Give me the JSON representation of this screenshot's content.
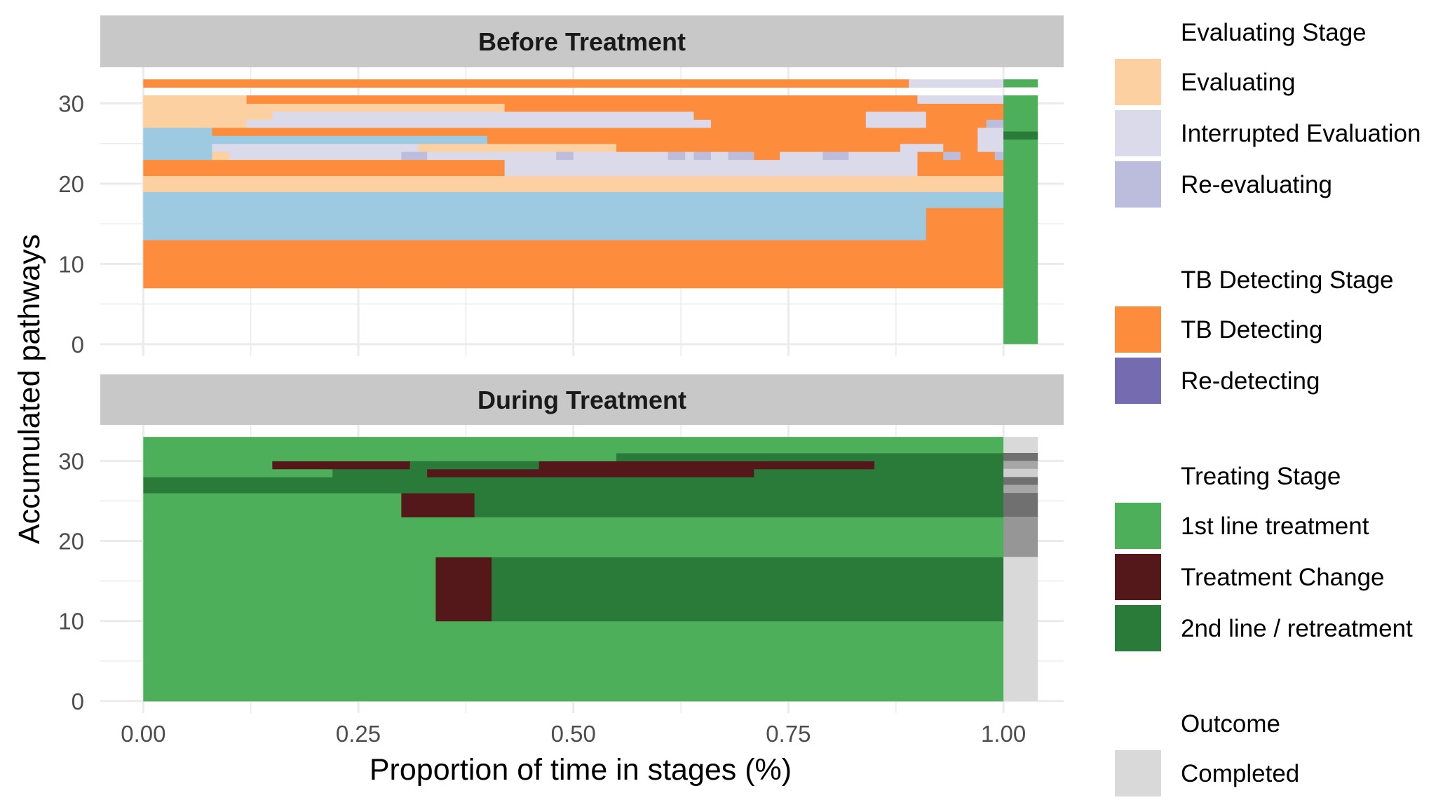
{
  "chart_data": {
    "type": "stacked-timeline",
    "xlabel": "Proportion of time in stages (%)",
    "ylabel": "Accumulated pathways",
    "x_ticks": [
      "0.00",
      "0.25",
      "0.50",
      "0.75",
      "1.00"
    ],
    "y_ticks": [
      "0",
      "10",
      "20",
      "30"
    ],
    "xlim": [
      -0.05,
      1.07
    ],
    "ylim": [
      -1.5,
      34.5
    ],
    "grid": true,
    "legend_position": "right",
    "panels": [
      {
        "title": "Before Treatment",
        "outcome_bars": [
          {
            "y0": 0,
            "y1": 31,
            "color": "#4daf5a"
          },
          {
            "y0": 25.5,
            "y1": 26.5,
            "color": "#2a7b3a"
          },
          {
            "y0": 32,
            "y1": 33,
            "color": "#4daf5a"
          }
        ],
        "bars": [
          {
            "y0": 7,
            "y1": 13,
            "segments": [
              [
                0,
                1.0,
                "TB Detecting"
              ]
            ]
          },
          {
            "y0": 13,
            "y1": 17,
            "segments": [
              [
                0,
                0.91,
                "Blue"
              ],
              [
                0.91,
                1.0,
                "TB Detecting"
              ]
            ]
          },
          {
            "y0": 17,
            "y1": 19,
            "segments": [
              [
                0,
                1.0,
                "Blue"
              ]
            ]
          },
          {
            "y0": 19,
            "y1": 21,
            "segments": [
              [
                0,
                1.0,
                "Evaluating"
              ]
            ]
          },
          {
            "y0": 21,
            "y1": 23,
            "segments": [
              [
                0,
                0.42,
                "TB Detecting"
              ],
              [
                0.42,
                0.9,
                "Interrupted Evaluation"
              ],
              [
                0.9,
                0.98,
                "TB Detecting"
              ],
              [
                0.98,
                1.0,
                "TB Detecting"
              ]
            ]
          },
          {
            "y0": 23,
            "y1": 24,
            "segments": [
              [
                0,
                0.08,
                "Blue"
              ],
              [
                0.08,
                0.1,
                "Evaluating"
              ],
              [
                0.1,
                0.3,
                "Interrupted Evaluation"
              ],
              [
                0.3,
                0.33,
                "Re-evaluating"
              ],
              [
                0.33,
                0.48,
                "Interrupted Evaluation"
              ],
              [
                0.48,
                0.5,
                "Re-evaluating"
              ],
              [
                0.5,
                0.61,
                "Interrupted Evaluation"
              ],
              [
                0.61,
                0.63,
                "Re-evaluating"
              ],
              [
                0.63,
                0.64,
                "Interrupted Evaluation"
              ],
              [
                0.64,
                0.66,
                "Re-evaluating"
              ],
              [
                0.66,
                0.68,
                "Interrupted Evaluation"
              ],
              [
                0.68,
                0.71,
                "Re-evaluating"
              ],
              [
                0.71,
                0.74,
                "TB Detecting"
              ],
              [
                0.74,
                0.79,
                "Interrupted Evaluation"
              ],
              [
                0.79,
                0.82,
                "Re-evaluating"
              ],
              [
                0.82,
                0.9,
                "Interrupted Evaluation"
              ],
              [
                0.9,
                0.93,
                "TB Detecting"
              ],
              [
                0.93,
                0.95,
                "Re-evaluating"
              ],
              [
                0.95,
                0.99,
                "TB Detecting"
              ],
              [
                0.99,
                1.0,
                "Re-evaluating"
              ]
            ]
          },
          {
            "y0": 24,
            "y1": 25,
            "segments": [
              [
                0,
                0.08,
                "Blue"
              ],
              [
                0.08,
                0.32,
                "Interrupted Evaluation"
              ],
              [
                0.32,
                0.55,
                "Evaluating"
              ],
              [
                0.55,
                0.67,
                "TB Detecting"
              ],
              [
                0.67,
                0.88,
                "TB Detecting"
              ],
              [
                0.88,
                0.93,
                "Interrupted Evaluation"
              ],
              [
                0.93,
                0.97,
                "TB Detecting"
              ],
              [
                0.97,
                1.0,
                "Interrupted Evaluation"
              ]
            ]
          },
          {
            "y0": 25,
            "y1": 26,
            "segments": [
              [
                0,
                0.08,
                "Blue"
              ],
              [
                0.08,
                0.4,
                "Blue"
              ],
              [
                0.4,
                0.67,
                "TB Detecting"
              ],
              [
                0.67,
                0.88,
                "TB Detecting"
              ],
              [
                0.88,
                0.97,
                "TB Detecting"
              ],
              [
                0.97,
                1.0,
                "Interrupted Evaluation"
              ]
            ]
          },
          {
            "y0": 26,
            "y1": 27,
            "segments": [
              [
                0,
                0.08,
                "Blue"
              ],
              [
                0.08,
                0.88,
                "TB Detecting"
              ],
              [
                0.88,
                0.97,
                "TB Detecting"
              ],
              [
                0.97,
                1.0,
                "Interrupted Evaluation"
              ]
            ]
          },
          {
            "y0": 27,
            "y1": 28,
            "segments": [
              [
                0,
                0.12,
                "Evaluating"
              ],
              [
                0.12,
                0.66,
                "Interrupted Evaluation"
              ],
              [
                0.66,
                0.84,
                "TB Detecting"
              ],
              [
                0.84,
                0.91,
                "Interrupted Evaluation"
              ],
              [
                0.91,
                0.98,
                "TB Detecting"
              ],
              [
                0.98,
                1.0,
                "Re-evaluating"
              ]
            ]
          },
          {
            "y0": 28,
            "y1": 29,
            "segments": [
              [
                0,
                0.15,
                "Evaluating"
              ],
              [
                0.15,
                0.64,
                "Interrupted Evaluation"
              ],
              [
                0.64,
                0.84,
                "TB Detecting"
              ],
              [
                0.84,
                0.91,
                "Interrupted Evaluation"
              ],
              [
                0.91,
                1.0,
                "TB Detecting"
              ]
            ]
          },
          {
            "y0": 29,
            "y1": 30,
            "segments": [
              [
                0,
                0.42,
                "Evaluating"
              ],
              [
                0.42,
                0.9,
                "TB Detecting"
              ],
              [
                0.9,
                1.0,
                "TB Detecting"
              ]
            ]
          },
          {
            "y0": 30,
            "y1": 31,
            "segments": [
              [
                0,
                0.12,
                "Evaluating"
              ],
              [
                0.12,
                0.9,
                "TB Detecting"
              ],
              [
                0.9,
                1.0,
                "Interrupted Evaluation"
              ]
            ]
          },
          {
            "y0": 32,
            "y1": 33,
            "segments": [
              [
                0,
                0.89,
                "TB Detecting"
              ],
              [
                0.89,
                1.0,
                "Interrupted Evaluation"
              ]
            ]
          }
        ]
      },
      {
        "title": "During Treatment",
        "outcome_bars": [
          {
            "y0": 0,
            "y1": 18,
            "color": "#d9d9d9"
          },
          {
            "y0": 18,
            "y1": 23,
            "color": "#969696"
          },
          {
            "y0": 23,
            "y1": 26,
            "color": "#707070"
          },
          {
            "y0": 26,
            "y1": 27,
            "color": "#a6a6a6"
          },
          {
            "y0": 27,
            "y1": 28,
            "color": "#707070"
          },
          {
            "y0": 28,
            "y1": 29,
            "color": "#cfcfcf"
          },
          {
            "y0": 29,
            "y1": 30,
            "color": "#a6a6a6"
          },
          {
            "y0": 30,
            "y1": 31,
            "color": "#707070"
          },
          {
            "y0": 31,
            "y1": 33,
            "color": "#d9d9d9"
          }
        ],
        "bars": [
          {
            "y0": 0,
            "y1": 10,
            "segments": [
              [
                0,
                1.0,
                "1st line treatment"
              ]
            ]
          },
          {
            "y0": 10,
            "y1": 18,
            "segments": [
              [
                0,
                0.34,
                "1st line treatment"
              ],
              [
                0.34,
                0.405,
                "Treatment Change"
              ],
              [
                0.405,
                1.0,
                "2nd line / retreatment"
              ]
            ]
          },
          {
            "y0": 18,
            "y1": 23,
            "segments": [
              [
                0,
                1.0,
                "1st line treatment"
              ]
            ]
          },
          {
            "y0": 23,
            "y1": 26,
            "segments": [
              [
                0,
                0.3,
                "1st line treatment"
              ],
              [
                0.3,
                0.385,
                "Treatment Change"
              ],
              [
                0.385,
                1.0,
                "2nd line / retreatment"
              ]
            ]
          },
          {
            "y0": 26,
            "y1": 28,
            "segments": [
              [
                0,
                1.0,
                "2nd line / retreatment"
              ]
            ]
          },
          {
            "y0": 28,
            "y1": 29,
            "segments": [
              [
                0,
                0.22,
                "1st line treatment"
              ],
              [
                0.22,
                0.33,
                "2nd line / retreatment"
              ],
              [
                0.33,
                0.45,
                "Treatment Change"
              ],
              [
                0.45,
                0.57,
                "Treatment Change"
              ],
              [
                0.57,
                0.71,
                "Treatment Change"
              ],
              [
                0.71,
                1.0,
                "2nd line / retreatment"
              ]
            ]
          },
          {
            "y0": 29,
            "y1": 30,
            "segments": [
              [
                0,
                0.15,
                "1st line treatment"
              ],
              [
                0.15,
                0.31,
                "Treatment Change"
              ],
              [
                0.31,
                0.46,
                "2nd line / retreatment"
              ],
              [
                0.46,
                0.85,
                "Treatment Change"
              ],
              [
                0.85,
                1.0,
                "2nd line / retreatment"
              ]
            ]
          },
          {
            "y0": 30,
            "y1": 31,
            "segments": [
              [
                0,
                0.55,
                "1st line treatment"
              ],
              [
                0.55,
                1.0,
                "2nd line / retreatment"
              ]
            ]
          },
          {
            "y0": 31,
            "y1": 33,
            "segments": [
              [
                0,
                1.0,
                "1st line treatment"
              ]
            ]
          }
        ]
      }
    ],
    "legend": [
      {
        "title": "Evaluating Stage",
        "items": [
          {
            "label": "Evaluating",
            "color": "#fdd0a2"
          },
          {
            "label": "Interrupted Evaluation",
            "color": "#dadaeb"
          },
          {
            "label": "Re-evaluating",
            "color": "#bcbddc"
          }
        ]
      },
      {
        "title": "TB Detecting Stage",
        "items": [
          {
            "label": "TB Detecting",
            "color": "#fd8d3c"
          },
          {
            "label": "Re-detecting",
            "color": "#756bb1"
          }
        ]
      },
      {
        "title": "Treating Stage",
        "items": [
          {
            "label": "1st line treatment",
            "color": "#4daf5a"
          },
          {
            "label": "Treatment Change",
            "color": "#54181b"
          },
          {
            "label": "2nd line / retreatment",
            "color": "#2a7b3a"
          }
        ]
      },
      {
        "title": "Outcome",
        "items": [
          {
            "label": "Completed",
            "color": "#d9d9d9"
          }
        ]
      }
    ],
    "colors": {
      "Evaluating": "#fdd0a2",
      "Interrupted Evaluation": "#dadaeb",
      "Re-evaluating": "#bcbddc",
      "TB Detecting": "#fd8d3c",
      "Re-detecting": "#756bb1",
      "1st line treatment": "#4daf5a",
      "Treatment Change": "#54181b",
      "2nd line / retreatment": "#2a7b3a",
      "Completed": "#d9d9d9",
      "Blue": "#9ecae1",
      "strip": "#c8c8c8",
      "grid": "#ebebeb",
      "axis_text": "#4d4d4d"
    }
  }
}
